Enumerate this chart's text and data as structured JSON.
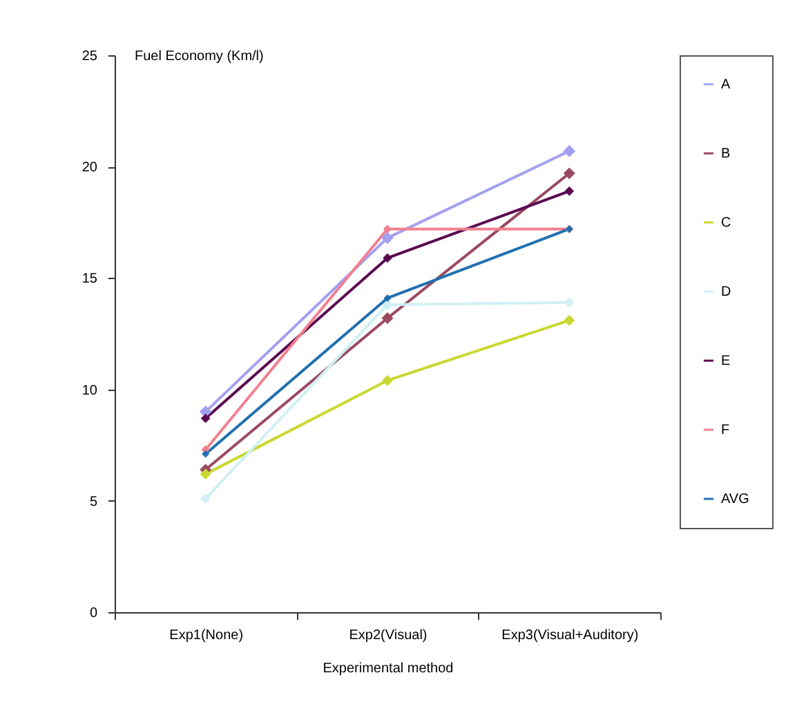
{
  "chart_data": {
    "type": "line",
    "ylabel": "Fuel Economy (Km/l)",
    "xlabel": "Experimental method",
    "categories": [
      "Exp1(None)",
      "Exp2(Visual)",
      "Exp3(Visual+Auditory)"
    ],
    "ylim": [
      0,
      25
    ],
    "yticks": [
      0,
      5,
      10,
      15,
      20,
      25
    ],
    "grid": false,
    "legend": "right",
    "marker": "diamond",
    "line_style": "solid",
    "series": [
      {
        "name": "A",
        "color": "#a4a0f0",
        "values": [
          9.0,
          16.8,
          20.7
        ]
      },
      {
        "name": "B",
        "color": "#9a4a60",
        "values": [
          6.4,
          13.2,
          19.7
        ]
      },
      {
        "name": "C",
        "color": "#c8d830",
        "values": [
          6.2,
          10.4,
          13.1
        ]
      },
      {
        "name": "D",
        "color": "#d0f0f4",
        "values": [
          5.1,
          13.8,
          13.9
        ]
      },
      {
        "name": "E",
        "color": "#5a0a50",
        "values": [
          8.7,
          15.9,
          18.9
        ]
      },
      {
        "name": "F",
        "color": "#f08090",
        "values": [
          7.3,
          17.2,
          17.2
        ]
      },
      {
        "name": "AVG",
        "color": "#2070b0",
        "values": [
          7.1,
          14.1,
          17.2
        ]
      }
    ]
  }
}
